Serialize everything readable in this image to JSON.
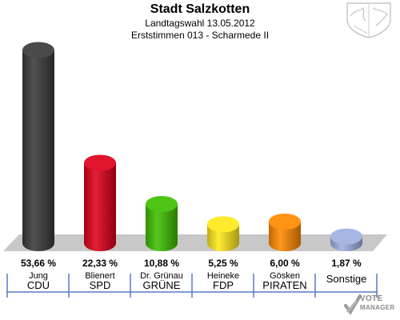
{
  "chart_data": {
    "type": "bar",
    "title": "Stadt Salzkotten",
    "subtitle1": "Landtagswahl 13.05.2012",
    "subtitle2": "Erststimmen 013 - Scharmede II",
    "categories": [
      "CDU",
      "SPD",
      "GRÜNE",
      "FDP",
      "PIRATEN",
      "Sonstige"
    ],
    "candidates": [
      "Jung",
      "Blienert",
      "Dr. Grünau",
      "Heineke",
      "Gösken",
      ""
    ],
    "values": [
      53.66,
      22.33,
      10.88,
      5.25,
      6.0,
      1.87
    ],
    "value_labels": [
      "53,66 %",
      "22,33 %",
      "10,88 %",
      "5,25 %",
      "6,00 %",
      "1,87 %"
    ],
    "colors": [
      "#3a3a3a",
      "#e0001b",
      "#3fbf00",
      "#ffe91a",
      "#ff8a00",
      "#a0b0e0"
    ],
    "ylim": [
      0,
      60
    ]
  },
  "logo": {
    "line1": "VOTE",
    "line2": "MANAGER"
  }
}
